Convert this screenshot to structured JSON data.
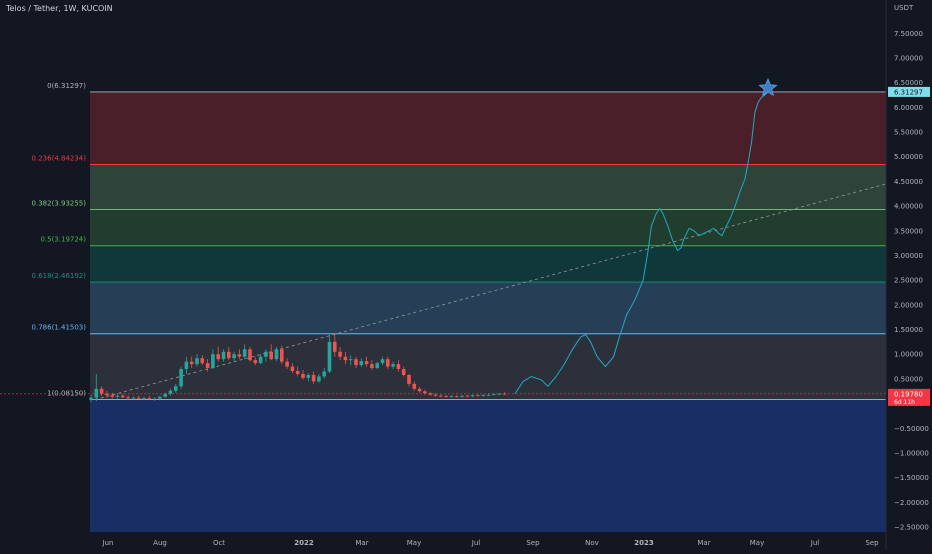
{
  "header": {
    "symbol_title": "Telos / Tether, 1W, KUCOIN"
  },
  "chart_data": {
    "type": "candlestick",
    "title": "Telos / Tether, 1W, KUCOIN",
    "ylabel": "USDT",
    "ylim": [
      -2.6,
      7.85
    ],
    "y_ticks": [
      "7.50000",
      "7.00000",
      "6.50000",
      "6.00000",
      "5.50000",
      "5.00000",
      "4.50000",
      "4.00000",
      "3.50000",
      "3.00000",
      "2.50000",
      "2.00000",
      "1.50000",
      "1.00000",
      "0.50000",
      "0.00000",
      "−0.50000",
      "−1.00000",
      "−1.50000",
      "−2.00000",
      "−2.50000"
    ],
    "x_ticks": [
      "Jun",
      "Aug",
      "Oct",
      "2022",
      "Mar",
      "May",
      "Jul",
      "Sep",
      "Nov",
      "2023",
      "Mar",
      "May",
      "Jul",
      "Sep"
    ],
    "current_price": {
      "label": "0.19780",
      "countdown": "6d 11h",
      "value": 0.1978
    },
    "top_price_tag": {
      "label": "6.31297",
      "value": 6.31297
    },
    "fib_levels": [
      {
        "ratio": "0",
        "price": 6.31297,
        "label": "0(6.31297)",
        "color": "#b2b5be"
      },
      {
        "ratio": "0.236",
        "price": 4.84234,
        "label": "0.236(4.84234)",
        "color": "#f23645"
      },
      {
        "ratio": "0.382",
        "price": 3.93255,
        "label": "0.382(3.93255)",
        "color": "#81c784"
      },
      {
        "ratio": "0.5",
        "price": 3.19724,
        "label": "0.5(3.19724)",
        "color": "#4caf50"
      },
      {
        "ratio": "0.618",
        "price": 2.46192,
        "label": "0.618(2.46192)",
        "color": "#089981"
      },
      {
        "ratio": "0.786",
        "price": 1.41503,
        "label": "0.786(1.41503)",
        "color": "#64b5f6"
      },
      {
        "ratio": "1",
        "price": 0.0815,
        "label": "1(0.08150)",
        "color": "#b2b5be"
      }
    ],
    "fib_fills": [
      "#f23645",
      "#81c784",
      "#4caf50",
      "#089981",
      "#64b5f6",
      "#787b86",
      "#2962ff"
    ],
    "candles": [
      {
        "o": 0.08,
        "h": 0.18,
        "l": 0.03,
        "c": 0.12
      },
      {
        "o": 0.12,
        "h": 0.6,
        "l": 0.05,
        "c": 0.3
      },
      {
        "o": 0.3,
        "h": 0.35,
        "l": 0.15,
        "c": 0.2
      },
      {
        "o": 0.2,
        "h": 0.26,
        "l": 0.12,
        "c": 0.17
      },
      {
        "o": 0.17,
        "h": 0.22,
        "l": 0.1,
        "c": 0.14
      },
      {
        "o": 0.14,
        "h": 0.19,
        "l": 0.1,
        "c": 0.16
      },
      {
        "o": 0.16,
        "h": 0.2,
        "l": 0.11,
        "c": 0.13
      },
      {
        "o": 0.13,
        "h": 0.17,
        "l": 0.09,
        "c": 0.11
      },
      {
        "o": 0.11,
        "h": 0.15,
        "l": 0.08,
        "c": 0.12
      },
      {
        "o": 0.12,
        "h": 0.16,
        "l": 0.09,
        "c": 0.1
      },
      {
        "o": 0.1,
        "h": 0.14,
        "l": 0.07,
        "c": 0.11
      },
      {
        "o": 0.11,
        "h": 0.15,
        "l": 0.08,
        "c": 0.09
      },
      {
        "o": 0.09,
        "h": 0.13,
        "l": 0.06,
        "c": 0.1
      },
      {
        "o": 0.1,
        "h": 0.16,
        "l": 0.07,
        "c": 0.14
      },
      {
        "o": 0.14,
        "h": 0.22,
        "l": 0.12,
        "c": 0.2
      },
      {
        "o": 0.2,
        "h": 0.3,
        "l": 0.16,
        "c": 0.26
      },
      {
        "o": 0.26,
        "h": 0.4,
        "l": 0.22,
        "c": 0.35
      },
      {
        "o": 0.35,
        "h": 0.75,
        "l": 0.3,
        "c": 0.7
      },
      {
        "o": 0.7,
        "h": 0.95,
        "l": 0.6,
        "c": 0.85
      },
      {
        "o": 0.85,
        "h": 0.95,
        "l": 0.72,
        "c": 0.8
      },
      {
        "o": 0.8,
        "h": 1.0,
        "l": 0.75,
        "c": 0.92
      },
      {
        "o": 0.92,
        "h": 0.98,
        "l": 0.78,
        "c": 0.82
      },
      {
        "o": 0.82,
        "h": 0.9,
        "l": 0.65,
        "c": 0.72
      },
      {
        "o": 0.72,
        "h": 1.1,
        "l": 0.7,
        "c": 1.0
      },
      {
        "o": 1.0,
        "h": 1.15,
        "l": 0.85,
        "c": 0.9
      },
      {
        "o": 0.9,
        "h": 1.1,
        "l": 0.85,
        "c": 1.05
      },
      {
        "o": 1.05,
        "h": 1.15,
        "l": 0.88,
        "c": 0.92
      },
      {
        "o": 0.92,
        "h": 1.05,
        "l": 0.85,
        "c": 1.0
      },
      {
        "o": 1.0,
        "h": 1.1,
        "l": 0.9,
        "c": 0.95
      },
      {
        "o": 0.95,
        "h": 1.2,
        "l": 0.9,
        "c": 1.1
      },
      {
        "o": 1.1,
        "h": 1.15,
        "l": 0.85,
        "c": 0.88
      },
      {
        "o": 0.88,
        "h": 0.95,
        "l": 0.78,
        "c": 0.82
      },
      {
        "o": 0.82,
        "h": 1.0,
        "l": 0.8,
        "c": 0.95
      },
      {
        "o": 0.95,
        "h": 1.1,
        "l": 0.85,
        "c": 1.05
      },
      {
        "o": 1.05,
        "h": 1.2,
        "l": 0.88,
        "c": 0.9
      },
      {
        "o": 0.9,
        "h": 1.15,
        "l": 0.86,
        "c": 1.1
      },
      {
        "o": 1.1,
        "h": 1.18,
        "l": 0.8,
        "c": 0.85
      },
      {
        "o": 0.85,
        "h": 0.92,
        "l": 0.7,
        "c": 0.75
      },
      {
        "o": 0.75,
        "h": 0.82,
        "l": 0.62,
        "c": 0.66
      },
      {
        "o": 0.66,
        "h": 0.75,
        "l": 0.55,
        "c": 0.6
      },
      {
        "o": 0.6,
        "h": 0.68,
        "l": 0.48,
        "c": 0.52
      },
      {
        "o": 0.52,
        "h": 0.62,
        "l": 0.45,
        "c": 0.58
      },
      {
        "o": 0.58,
        "h": 0.65,
        "l": 0.4,
        "c": 0.45
      },
      {
        "o": 0.45,
        "h": 0.6,
        "l": 0.42,
        "c": 0.55
      },
      {
        "o": 0.55,
        "h": 0.72,
        "l": 0.5,
        "c": 0.65
      },
      {
        "o": 0.65,
        "h": 1.4,
        "l": 0.62,
        "c": 1.25
      },
      {
        "o": 1.25,
        "h": 1.42,
        "l": 0.95,
        "c": 1.05
      },
      {
        "o": 1.05,
        "h": 1.15,
        "l": 0.88,
        "c": 0.95
      },
      {
        "o": 0.95,
        "h": 1.05,
        "l": 0.8,
        "c": 0.88
      },
      {
        "o": 0.88,
        "h": 0.98,
        "l": 0.78,
        "c": 0.9
      },
      {
        "o": 0.9,
        "h": 0.95,
        "l": 0.72,
        "c": 0.78
      },
      {
        "o": 0.78,
        "h": 0.92,
        "l": 0.74,
        "c": 0.86
      },
      {
        "o": 0.86,
        "h": 0.95,
        "l": 0.75,
        "c": 0.8
      },
      {
        "o": 0.8,
        "h": 0.88,
        "l": 0.68,
        "c": 0.72
      },
      {
        "o": 0.72,
        "h": 0.85,
        "l": 0.7,
        "c": 0.82
      },
      {
        "o": 0.82,
        "h": 0.95,
        "l": 0.78,
        "c": 0.9
      },
      {
        "o": 0.9,
        "h": 0.95,
        "l": 0.7,
        "c": 0.75
      },
      {
        "o": 0.75,
        "h": 0.85,
        "l": 0.7,
        "c": 0.8
      },
      {
        "o": 0.8,
        "h": 0.88,
        "l": 0.65,
        "c": 0.7
      },
      {
        "o": 0.7,
        "h": 0.75,
        "l": 0.55,
        "c": 0.58
      },
      {
        "o": 0.58,
        "h": 0.6,
        "l": 0.35,
        "c": 0.4
      },
      {
        "o": 0.4,
        "h": 0.45,
        "l": 0.26,
        "c": 0.3
      },
      {
        "o": 0.3,
        "h": 0.34,
        "l": 0.22,
        "c": 0.25
      },
      {
        "o": 0.25,
        "h": 0.28,
        "l": 0.18,
        "c": 0.21
      },
      {
        "o": 0.21,
        "h": 0.24,
        "l": 0.16,
        "c": 0.18
      },
      {
        "o": 0.18,
        "h": 0.21,
        "l": 0.14,
        "c": 0.16
      },
      {
        "o": 0.16,
        "h": 0.19,
        "l": 0.13,
        "c": 0.15
      },
      {
        "o": 0.15,
        "h": 0.18,
        "l": 0.12,
        "c": 0.14
      },
      {
        "o": 0.14,
        "h": 0.17,
        "l": 0.12,
        "c": 0.15
      },
      {
        "o": 0.15,
        "h": 0.17,
        "l": 0.12,
        "c": 0.14
      },
      {
        "o": 0.14,
        "h": 0.17,
        "l": 0.12,
        "c": 0.16
      },
      {
        "o": 0.16,
        "h": 0.18,
        "l": 0.13,
        "c": 0.15
      },
      {
        "o": 0.15,
        "h": 0.18,
        "l": 0.13,
        "c": 0.17
      },
      {
        "o": 0.17,
        "h": 0.19,
        "l": 0.14,
        "c": 0.16
      },
      {
        "o": 0.16,
        "h": 0.19,
        "l": 0.14,
        "c": 0.17
      },
      {
        "o": 0.17,
        "h": 0.2,
        "l": 0.15,
        "c": 0.18
      },
      {
        "o": 0.18,
        "h": 0.21,
        "l": 0.16,
        "c": 0.19
      },
      {
        "o": 0.19,
        "h": 0.22,
        "l": 0.17,
        "c": 0.2
      },
      {
        "o": 0.2,
        "h": 0.23,
        "l": 0.18,
        "c": 0.1978
      }
    ],
    "projection_path": [
      [
        0,
        0.2
      ],
      [
        5,
        0.45
      ],
      [
        10,
        0.55
      ],
      [
        16,
        0.48
      ],
      [
        20,
        0.35
      ],
      [
        25,
        0.55
      ],
      [
        30,
        0.8
      ],
      [
        35,
        1.1
      ],
      [
        40,
        1.35
      ],
      [
        43,
        1.4
      ],
      [
        46,
        1.25
      ],
      [
        50,
        0.95
      ],
      [
        55,
        0.75
      ],
      [
        60,
        0.95
      ],
      [
        64,
        1.4
      ],
      [
        68,
        1.8
      ],
      [
        73,
        2.1
      ],
      [
        78,
        2.5
      ],
      [
        81,
        3.1
      ],
      [
        83,
        3.6
      ],
      [
        86,
        3.85
      ],
      [
        88,
        3.95
      ],
      [
        90,
        3.85
      ],
      [
        93,
        3.6
      ],
      [
        96,
        3.3
      ],
      [
        99,
        3.1
      ],
      [
        101,
        3.15
      ],
      [
        103,
        3.35
      ],
      [
        106,
        3.55
      ],
      [
        109,
        3.5
      ],
      [
        112,
        3.4
      ],
      [
        115,
        3.45
      ],
      [
        118,
        3.5
      ],
      [
        121,
        3.55
      ],
      [
        124,
        3.45
      ],
      [
        126,
        3.4
      ],
      [
        128,
        3.55
      ],
      [
        131,
        3.75
      ],
      [
        134,
        4.0
      ],
      [
        137,
        4.3
      ],
      [
        140,
        4.55
      ],
      [
        142,
        4.9
      ],
      [
        144,
        5.3
      ],
      [
        146,
        5.9
      ],
      [
        148,
        6.1
      ],
      [
        150,
        6.2
      ],
      [
        152,
        6.25
      ],
      [
        154,
        6.31
      ]
    ],
    "trendline": {
      "from": 0.08,
      "to_value": 4.45
    },
    "legend": "none",
    "grid": false
  }
}
